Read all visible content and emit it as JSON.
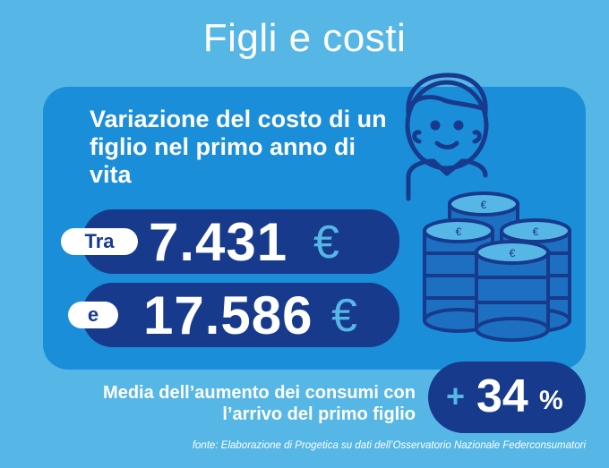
{
  "title": "Figli e costi",
  "subtitle": "Variazione del costo di un figlio nel primo anno di vita",
  "range": {
    "from_label": "Tra",
    "from_value": "7.431",
    "to_label": "e",
    "to_value": "17.586",
    "currency": "€"
  },
  "increase": {
    "description": "Media dell’aumento dei consumi con l’arrivo del primo figlio",
    "sign": "+",
    "value": "34",
    "unit": "%"
  },
  "source": "fonte: Elaborazione di Progetica su dati dell’Osservatorio Nazionale Federconsumatori",
  "icons": [
    "child-icon",
    "coin-stacks-icon"
  ],
  "colors": {
    "background": "#56b7e6",
    "panel": "#1a8ed8",
    "pill": "#173a8c",
    "accent": "#56b7e6",
    "text": "#ffffff"
  }
}
